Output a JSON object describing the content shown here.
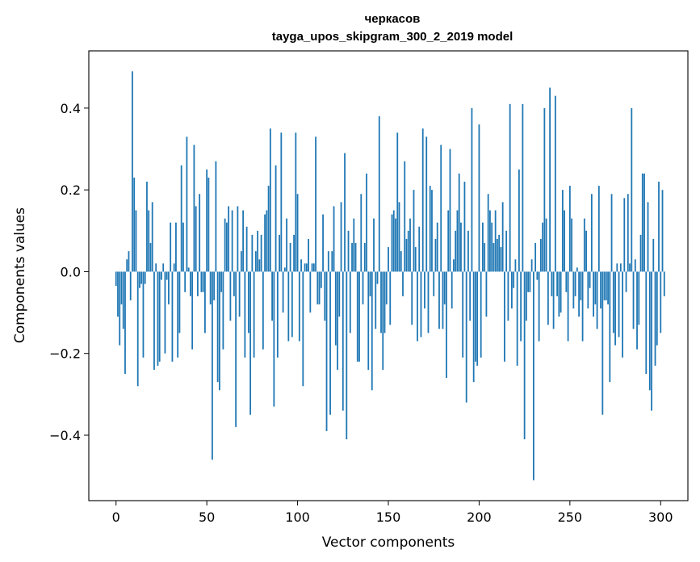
{
  "chart_data": {
    "type": "bar",
    "title": "черкасов",
    "subtitle": "tayga_upos_skipgram_300_2_2019 model",
    "xlabel": "Vector components",
    "ylabel": "Components values",
    "xlim": [
      -15,
      315
    ],
    "ylim": [
      -0.56,
      0.54
    ],
    "xticks": [
      0,
      50,
      100,
      150,
      200,
      250,
      300
    ],
    "yticks": [
      -0.4,
      -0.2,
      0.0,
      0.2,
      0.4
    ],
    "xtick_labels": [
      "0",
      "50",
      "100",
      "150",
      "200",
      "250",
      "300"
    ],
    "ytick_labels": [
      "−0.4",
      "−0.2",
      "0.0",
      "0.2",
      "0.4"
    ],
    "bar_color": "#1f77b4",
    "grid": false,
    "values": [
      -0.035,
      -0.11,
      -0.18,
      -0.08,
      -0.14,
      -0.25,
      0.03,
      0.05,
      -0.07,
      0.49,
      0.23,
      0.15,
      -0.28,
      -0.04,
      -0.03,
      -0.21,
      -0.03,
      0.22,
      0.15,
      0.07,
      0.17,
      -0.24,
      0.02,
      -0.23,
      -0.22,
      -0.02,
      0.02,
      -0.2,
      -0.02,
      -0.08,
      0.12,
      -0.22,
      0.02,
      0.12,
      -0.21,
      -0.15,
      0.26,
      0.12,
      -0.05,
      0.33,
      0.01,
      -0.06,
      -0.19,
      0.31,
      0.16,
      -0.06,
      0.19,
      -0.05,
      -0.05,
      -0.15,
      0.25,
      0.23,
      -0.08,
      -0.46,
      -0.07,
      0.27,
      -0.27,
      -0.29,
      -0.05,
      -0.19,
      0.13,
      0.12,
      0.16,
      -0.12,
      0.15,
      -0.06,
      -0.38,
      0.16,
      -0.11,
      0.05,
      0.15,
      -0.21,
      0.11,
      -0.15,
      -0.35,
      0.09,
      -0.21,
      0.05,
      0.1,
      0.03,
      0.09,
      -0.19,
      0.14,
      0.15,
      0.21,
      0.35,
      -0.12,
      -0.33,
      0.26,
      -0.21,
      0.09,
      0.34,
      -0.1,
      0.01,
      0.13,
      -0.17,
      0.07,
      -0.16,
      0.09,
      0.34,
      0.19,
      -0.17,
      0.03,
      -0.28,
      0.02,
      0.02,
      0.08,
      -0.1,
      0.02,
      0.02,
      0.33,
      -0.08,
      -0.08,
      -0.04,
      0.14,
      -0.12,
      -0.39,
      0.05,
      -0.35,
      0.05,
      0.16,
      -0.18,
      -0.24,
      -0.11,
      0.17,
      -0.34,
      0.29,
      -0.41,
      0.1,
      -0.15,
      0.07,
      0.13,
      0.07,
      -0.22,
      -0.22,
      0.19,
      -0.08,
      0.07,
      0.24,
      -0.24,
      -0.06,
      -0.29,
      0.13,
      -0.14,
      -0.03,
      0.38,
      -0.15,
      -0.24,
      -0.15,
      -0.08,
      0.06,
      -0.13,
      0.14,
      0.15,
      0.13,
      0.34,
      0.17,
      0.05,
      -0.06,
      0.27,
      0.08,
      0.1,
      0.13,
      -0.13,
      0.2,
      0.06,
      -0.17,
      0.11,
      -0.16,
      0.35,
      -0.09,
      0.33,
      -0.15,
      0.21,
      0.2,
      -0.06,
      0.08,
      0.12,
      -0.14,
      0.31,
      -0.14,
      -0.08,
      -0.26,
      0.15,
      0.3,
      -0.09,
      0.03,
      0.1,
      0.15,
      0.24,
      0.12,
      -0.21,
      0.22,
      -0.32,
      0.1,
      -0.12,
      0.4,
      -0.27,
      -0.22,
      -0.23,
      0.36,
      -0.21,
      0.12,
      0.07,
      -0.11,
      0.19,
      0.15,
      0.12,
      0.07,
      0.15,
      0.08,
      0.09,
      0.06,
      0.17,
      -0.22,
      0.1,
      -0.12,
      0.41,
      -0.09,
      -0.04,
      0.03,
      -0.23,
      0.25,
      -0.17,
      0.41,
      -0.41,
      -0.12,
      -0.05,
      -0.05,
      0.03,
      -0.51,
      0.07,
      -0.02,
      -0.17,
      0.08,
      0.12,
      0.4,
      0.13,
      -0.13,
      0.45,
      -0.06,
      -0.14,
      0.43,
      -0.06,
      -0.11,
      -0.1,
      0.2,
      0.15,
      -0.05,
      -0.17,
      0.21,
      0.13,
      -0.09,
      -0.06,
      0.01,
      -0.11,
      -0.07,
      -0.17,
      0.13,
      0.1,
      -0.09,
      -0.04,
      0.19,
      -0.11,
      -0.08,
      -0.14,
      0.21,
      -0.09,
      -0.35,
      -0.07,
      -0.07,
      -0.08,
      -0.27,
      0.19,
      -0.15,
      -0.18,
      0.02,
      -0.16,
      0.02,
      -0.21,
      0.18,
      -0.05,
      0.19,
      0.02,
      0.4,
      -0.14,
      0.03,
      -0.19,
      -0.13,
      0.09,
      0.24,
      0.24,
      -0.25,
      0.17,
      -0.29,
      -0.34,
      0.08,
      -0.23,
      -0.18,
      0.22,
      -0.15,
      0.2,
      -0.06
    ]
  }
}
